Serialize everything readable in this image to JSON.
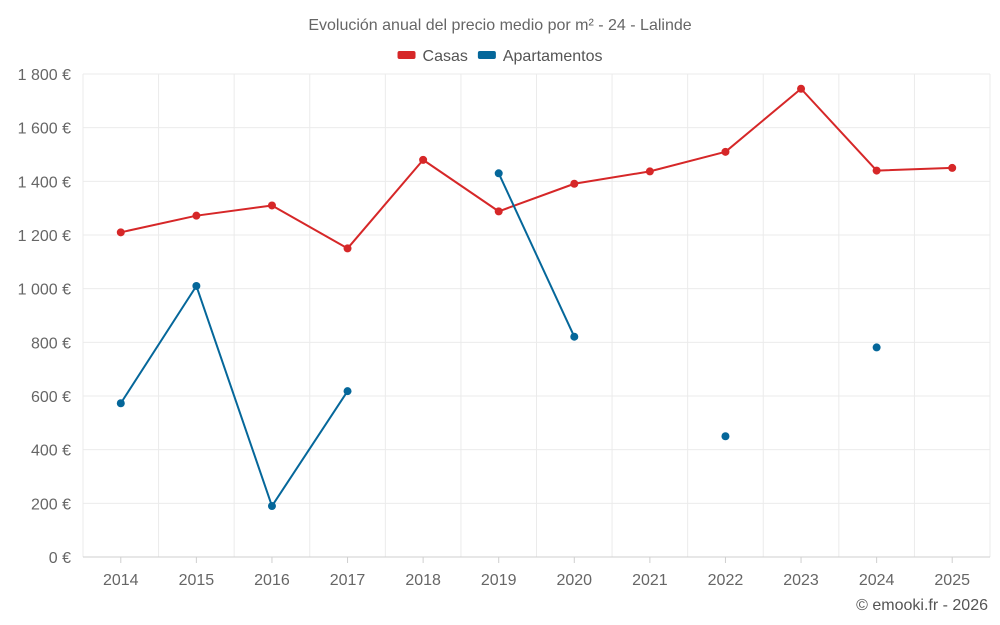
{
  "chart_data": {
    "type": "line",
    "title": "Evolución anual del precio medio por m² - 24 - Lalinde",
    "categories": [
      "2014",
      "2015",
      "2016",
      "2017",
      "2018",
      "2019",
      "2020",
      "2021",
      "2022",
      "2023",
      "2024",
      "2025"
    ],
    "ylim": [
      0,
      1800
    ],
    "yticks": [
      0,
      200,
      400,
      600,
      800,
      1000,
      1200,
      1400,
      1600,
      1800
    ],
    "ytick_labels": [
      "0 €",
      "200 €",
      "400 €",
      "600 €",
      "800 €",
      "1 000 €",
      "1 200 €",
      "1 400 €",
      "1 600 €",
      "1 800 €"
    ],
    "grid": true,
    "legend_position": "top-center",
    "series": [
      {
        "name": "Casas",
        "color": "#d62728",
        "values": [
          1210,
          1272,
          1310,
          1150,
          1480,
          1288,
          1391,
          1437,
          1510,
          1745,
          1440,
          1450
        ]
      },
      {
        "name": "Apartamentos",
        "color": "#05679a",
        "values": [
          573,
          1010,
          190,
          618,
          null,
          1430,
          821,
          null,
          450,
          null,
          781,
          null
        ]
      }
    ]
  },
  "credit": "© emooki.fr - 2026"
}
